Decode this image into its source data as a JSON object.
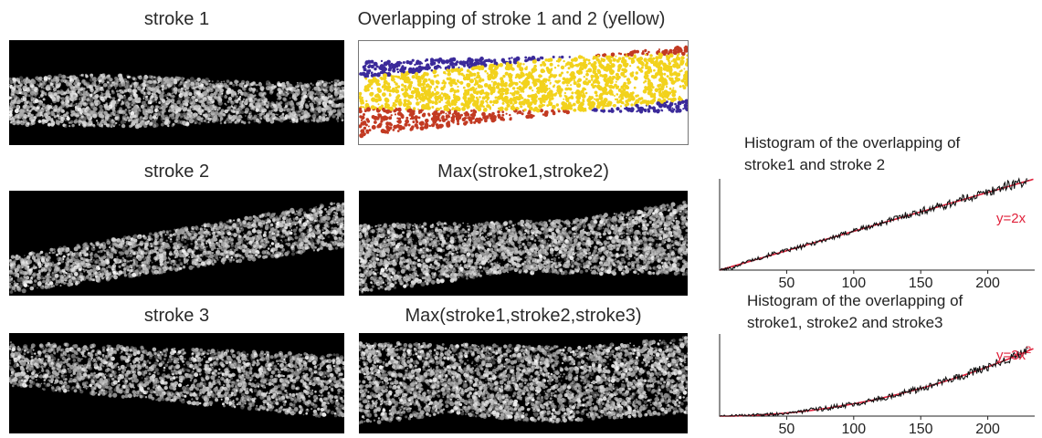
{
  "labels": {
    "stroke1": "stroke 1",
    "stroke2": "stroke 2",
    "stroke3": "stroke 3",
    "overlap12": "Overlapping of stroke 1 and 2 (yellow)",
    "max12": "Max(stroke1,stroke2)",
    "max123": "Max(stroke1,stroke2,stroke3)"
  },
  "overlap_colors": {
    "stroke1": "#c23a22",
    "stroke2": "#3b2a9a",
    "overlap": "#f2d21c"
  },
  "chart_data": [
    {
      "type": "line",
      "title_line1": "Histogram of the overlapping of",
      "title_line2": "stroke1 and stroke 2",
      "xlabel": "",
      "ylabel": "",
      "xlim": [
        0,
        235
      ],
      "ylim": [
        0,
        470
      ],
      "xticks": [
        50,
        100,
        150,
        200
      ],
      "fit_label": "y=2x",
      "fit": {
        "form": "linear",
        "coef": 2
      },
      "series_color": "#111111",
      "fit_color": "#e0203a",
      "x": [
        0,
        10,
        20,
        30,
        40,
        50,
        60,
        70,
        80,
        90,
        100,
        110,
        120,
        130,
        140,
        150,
        160,
        170,
        180,
        190,
        200,
        210,
        220,
        230
      ],
      "y": [
        0,
        12,
        45,
        62,
        85,
        100,
        118,
        140,
        160,
        178,
        205,
        218,
        242,
        262,
        285,
        300,
        322,
        338,
        362,
        382,
        400,
        425,
        445,
        462
      ]
    },
    {
      "type": "line",
      "title_line1": "Histogram of the overlapping of",
      "title_line2": "stroke1, stroke2 and stroke3",
      "xlabel": "",
      "ylabel": "",
      "xlim": [
        0,
        235
      ],
      "ylim": [
        0,
        200000
      ],
      "xticks": [
        50,
        100,
        150,
        200
      ],
      "fit_label_base": "y=3x",
      "fit_label_exp": "2",
      "fit": {
        "form": "quadratic",
        "coef": 3
      },
      "series_color": "#111111",
      "fit_color": "#e0203a",
      "x": [
        0,
        20,
        40,
        60,
        80,
        100,
        120,
        140,
        160,
        180,
        200,
        220,
        230
      ],
      "y": [
        0,
        1200,
        4800,
        10800,
        19200,
        30000,
        43200,
        58800,
        76800,
        97200,
        120000,
        145200,
        165000
      ]
    }
  ]
}
